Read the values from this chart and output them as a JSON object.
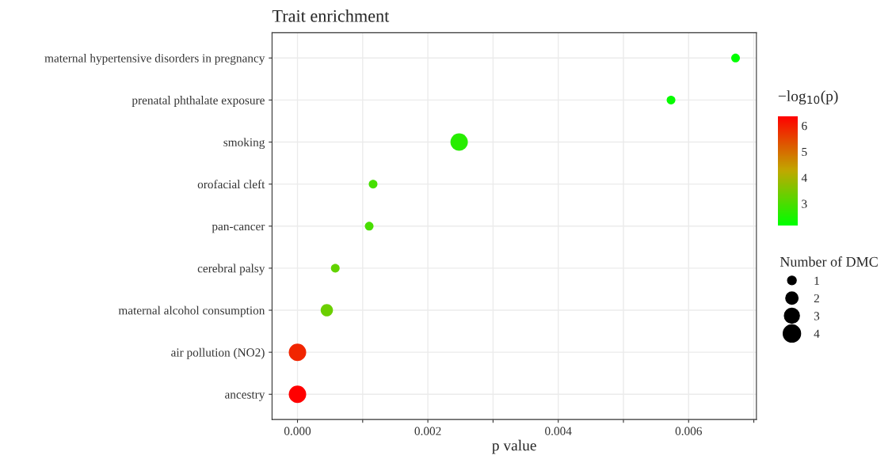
{
  "chart_data": {
    "type": "bubble",
    "orientation": "horizontal",
    "title": "Trait enrichment",
    "xlabel": "p value",
    "categories": [
      "maternal hypertensive disorders in pregnancy",
      "prenatal phthalate exposure",
      "smoking",
      "orofacial cleft",
      "pan-cancer",
      "cerebral palsy",
      "maternal alcohol consumption",
      "air pollution (NO2)",
      "ancestry"
    ],
    "values": [
      0.00672,
      0.00573,
      0.00248,
      0.00116,
      0.0011,
      0.00058,
      0.00045,
      0.0,
      0.0
    ],
    "sizes": [
      1,
      1,
      4,
      1,
      1,
      1,
      2,
      4,
      4
    ],
    "cvalues": [
      2.17,
      2.24,
      2.61,
      2.94,
      2.96,
      3.24,
      3.35,
      5.9,
      6.37
    ],
    "size_legend": [
      1,
      2,
      3,
      4
    ],
    "legend_title": "Number of DMC",
    "clabel": "−log$_{10}$(p)",
    "clim": [
      2.17,
      6.37
    ],
    "cticks": [
      3,
      4,
      5,
      6
    ],
    "xlim": [
      -0.00039,
      0.00704
    ],
    "xticks": [
      {
        "value": 0.0,
        "label": "0.000"
      },
      {
        "value": 0.001,
        "label": null
      },
      {
        "value": 0.002,
        "label": "0.002"
      },
      {
        "value": 0.003,
        "label": null
      },
      {
        "value": 0.004,
        "label": "0.004"
      },
      {
        "value": 0.005,
        "label": null
      },
      {
        "value": 0.006,
        "label": "0.006"
      },
      {
        "value": 0.007,
        "label": null
      }
    ],
    "grid": true
  }
}
